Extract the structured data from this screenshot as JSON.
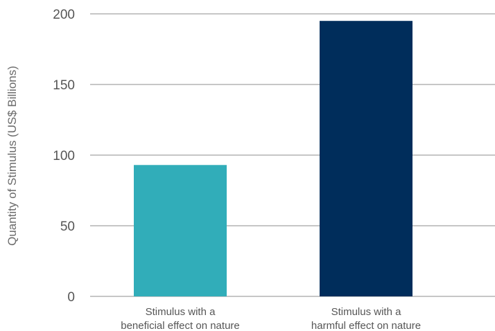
{
  "chart_data": {
    "type": "bar",
    "title": "",
    "xlabel": "",
    "ylabel": "Quantity of Stimulus (US$ Billions)",
    "ylim": [
      0,
      200
    ],
    "yticks": [
      0,
      50,
      100,
      150,
      200
    ],
    "grid": true,
    "categories": [
      [
        "Stimulus with a",
        "beneficial effect on nature"
      ],
      [
        "Stimulus with a",
        "harmful effect on nature"
      ]
    ],
    "values": [
      93,
      195
    ],
    "colors": [
      "#31adb9",
      "#002d5b"
    ]
  }
}
